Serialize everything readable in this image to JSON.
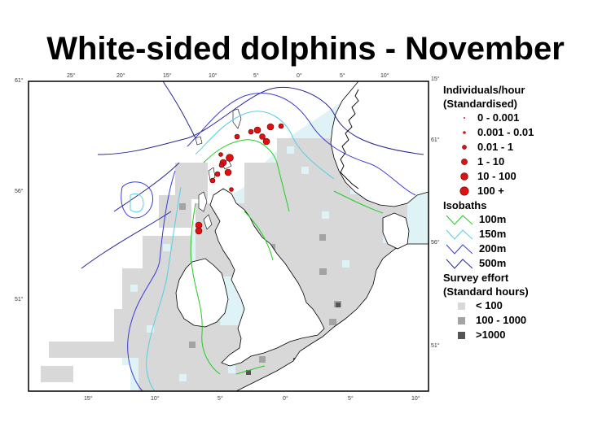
{
  "title": "White-sided dolphins - November",
  "map": {
    "lon_ticks_top": [
      "25°",
      "20°",
      "15°",
      "10°",
      "5°",
      "0°",
      "5°",
      "10°"
    ],
    "lon_ticks_bottom": [
      "15°",
      "10°",
      "5°",
      "0°",
      "5°",
      "10°"
    ],
    "lat_ticks_left": [
      "61°",
      "56°",
      "51°"
    ],
    "lat_ticks_right": [
      "15°",
      "61°",
      "56°",
      "51°"
    ],
    "colors": {
      "sea": "#dff3f6",
      "land": "#ffffff",
      "effort_low": "#d8d8d8",
      "effort_mid": "#a3a3a3",
      "effort_high": "#555555",
      "iso_100": "#22cc22",
      "iso_150": "#55cfe0",
      "iso_200": "#3a3ad6",
      "iso_500": "#272790",
      "dot": "#e01010"
    }
  },
  "legend": {
    "individuals_heading_1": "Individuals/hour",
    "individuals_heading_2": "(Standardised)",
    "classes": [
      "0 - 0.001",
      "0.001 - 0.01",
      "0.01 - 1",
      "1 - 10",
      "10 - 100",
      "100 +"
    ],
    "isobaths_heading": "Isobaths",
    "isobaths": [
      "100m",
      "150m",
      "200m",
      "500m"
    ],
    "effort_heading_1": "Survey effort",
    "effort_heading_2": "(Standard hours)",
    "effort_classes": [
      "< 100",
      "100 - 1000",
      ">1000"
    ]
  }
}
